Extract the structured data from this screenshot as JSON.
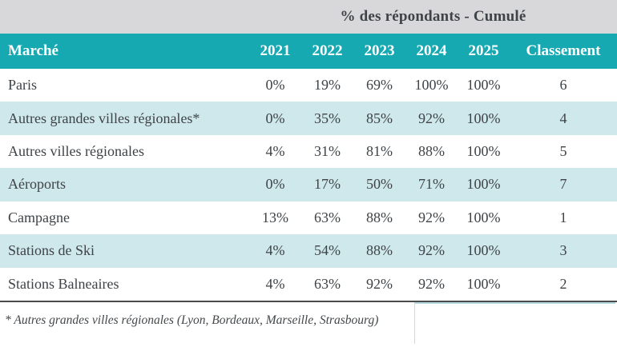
{
  "chart_data": {
    "type": "table",
    "title": "% des répondants - Cumulé",
    "columns": [
      "Marché",
      "2021",
      "2022",
      "2023",
      "2024",
      "2025",
      "Classement"
    ],
    "rows": [
      [
        "Paris",
        "0%",
        "19%",
        "69%",
        "100%",
        "100%",
        "6"
      ],
      [
        "Autres grandes villes régionales*",
        "0%",
        "35%",
        "85%",
        "92%",
        "100%",
        "4"
      ],
      [
        "Autres villes régionales",
        "4%",
        "31%",
        "81%",
        "88%",
        "100%",
        "5"
      ],
      [
        "Aéroports",
        "0%",
        "17%",
        "50%",
        "71%",
        "100%",
        "7"
      ],
      [
        "Campagne",
        "13%",
        "63%",
        "88%",
        "92%",
        "100%",
        "1"
      ],
      [
        "Stations de Ski",
        "4%",
        "54%",
        "88%",
        "92%",
        "100%",
        "3"
      ],
      [
        "Stations Balneaires",
        "4%",
        "63%",
        "92%",
        "92%",
        "100%",
        "2"
      ]
    ],
    "footnote": "* Autres grandes villes régionales (Lyon, Bordeaux, Marseille, Strasbourg)",
    "layout_hints": {
      "striped_rows": "even rows highlighted",
      "values_are_cumulative_percent": true
    }
  },
  "colors": {
    "header_teal": "#17a9b2",
    "stripe_blue": "#cfe8eb",
    "title_band_gray": "#d8d8da",
    "text_dark": "#3e4347",
    "footer_rule": "#4a4a4a"
  }
}
